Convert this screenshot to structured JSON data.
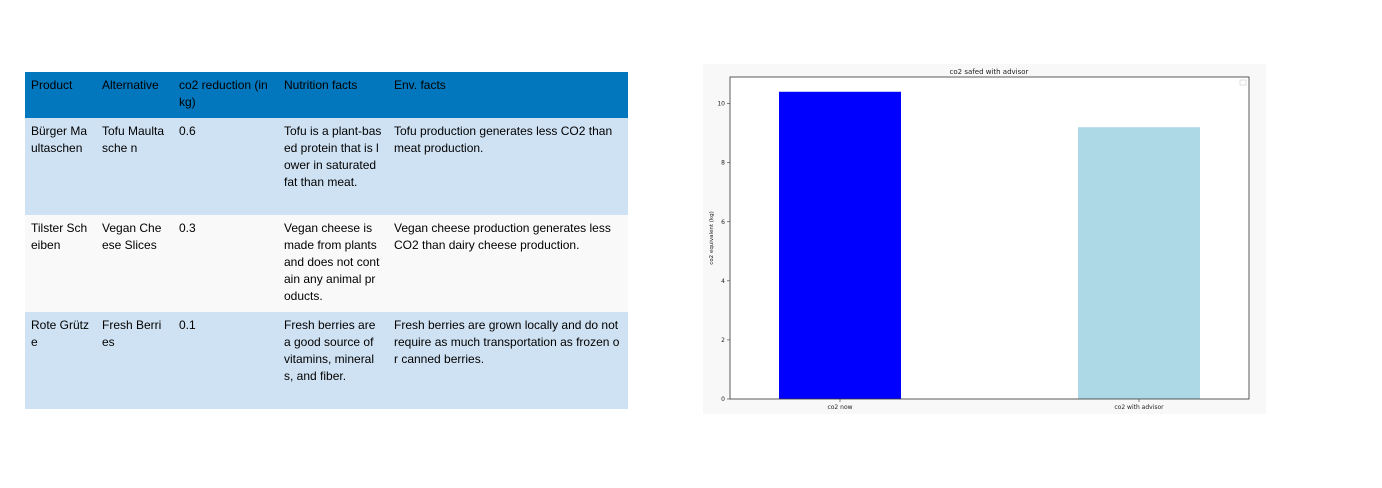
{
  "table": {
    "headers": [
      "Product",
      "Alternative",
      "co2 reduction (in kg)",
      "Nutrition facts",
      "Env. facts"
    ],
    "rows": [
      {
        "product": "Bürger Maultaschen",
        "alternative": "Tofu Maultasche n",
        "co2_reduction": "0.6",
        "nutrition": "Tofu is a plant-based protein that is lower in saturated fat than meat.",
        "env": "Tofu production generates less CO2 than meat production."
      },
      {
        "product": "Tilster Scheiben",
        "alternative": "Vegan Cheese Slices",
        "co2_reduction": "0.3",
        "nutrition": "Vegan cheese is made from plants and does not contain any animal products.",
        "env": "Vegan cheese production generates less CO2 than dairy cheese production."
      },
      {
        "product": "Rote Grütze",
        "alternative": "Fresh Berries",
        "co2_reduction": "0.1",
        "nutrition": "Fresh berries are a good source of vitamins, minerals, and fiber.",
        "env": "Fresh berries are grown locally and do not require as much transportation as frozen or canned berries."
      }
    ],
    "colors": {
      "header": "#0277bd",
      "row_odd": "#cfe2f3",
      "row_even": "#f9f9f9"
    }
  },
  "chart_data": {
    "type": "bar",
    "title": "co2 safed with advisor",
    "xlabel": "",
    "ylabel": "co2 equivalent (kg)",
    "categories": [
      "co2 now",
      "co2 with advisor"
    ],
    "values": [
      10.4,
      9.2
    ],
    "colors": [
      "#0000ff",
      "#add8e6"
    ],
    "ylim": [
      0,
      10.9
    ],
    "yticks": [
      0,
      2,
      4,
      6,
      8,
      10
    ],
    "grid": false,
    "legend": "top-right, empty"
  }
}
